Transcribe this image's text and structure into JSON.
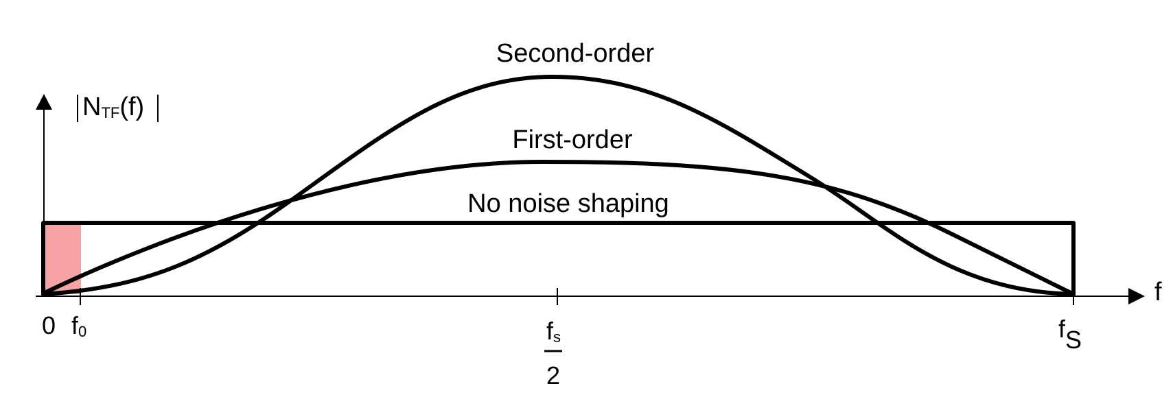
{
  "curves": [
    {
      "id": "second-order",
      "label": "Second-order"
    },
    {
      "id": "first-order",
      "label": "First-order"
    },
    {
      "id": "no-shaping",
      "label": "No noise shaping"
    }
  ],
  "y_axis": {
    "label_main": "N",
    "label_sub": "TF",
    "label_rest": "(f)"
  },
  "x_axis": {
    "label": "f",
    "ticks": {
      "zero": "0",
      "f0_main": "f",
      "f0_sub": "0",
      "half_num_main": "f",
      "half_num_sub": "s",
      "half_den": "2",
      "fs_main": "f",
      "fs_sub": "S"
    }
  },
  "colors": {
    "curve": "#000000",
    "signal_band": "#f8a3a3"
  }
}
